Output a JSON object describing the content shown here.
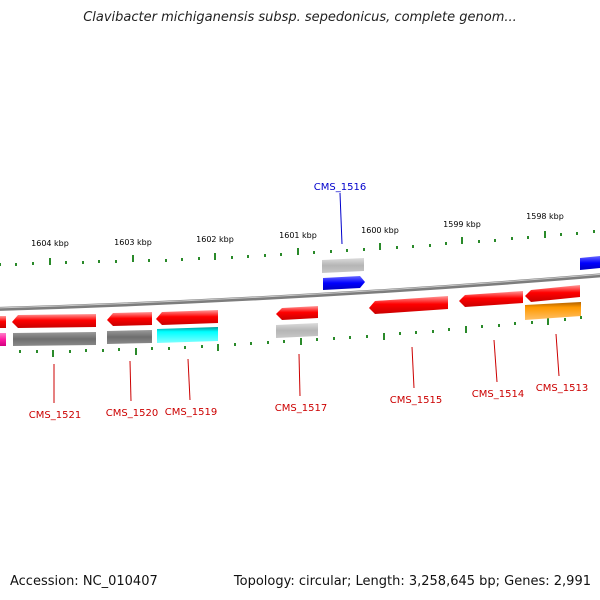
{
  "title": "Clavibacter michiganensis subsp. sepedonicus, complete genom...",
  "footer": {
    "accession": "Accession: NC_010407",
    "info": "Topology: circular; Length: 3,258,645 bp; Genes: 2,991"
  },
  "scale_labels": [
    "1604 kbp",
    "1603 kbp",
    "1602 kbp",
    "1601 kbp",
    "1600 kbp",
    "1599 kbp",
    "1598 kbp"
  ],
  "gene_labels": [
    "CMS_1516",
    "CMS_1521",
    "CMS_1520",
    "CMS_1519",
    "CMS_1517",
    "CMS_1515",
    "CMS_1514",
    "CMS_1513"
  ],
  "colors": {
    "red": "#ff0000",
    "gray": "#6e6e6e",
    "light_gray": "#bdbdbd",
    "blue": "#0000ff",
    "cyan": "#00ffff",
    "orange": "#ff9900",
    "magenta": "#ff1aa0",
    "tick_green": "#2a8a2a",
    "label_red": "#cc0000",
    "label_blue": "#0000cc"
  }
}
